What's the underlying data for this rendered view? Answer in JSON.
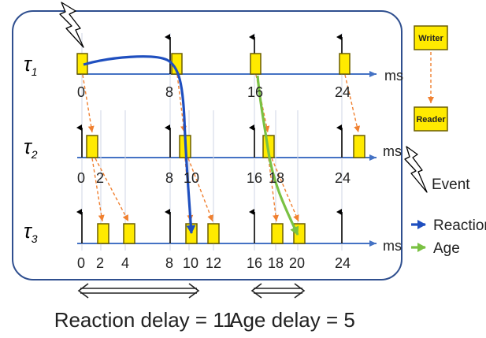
{
  "tasks": [
    {
      "label_base": "τ",
      "label_sub": "1"
    },
    {
      "label_base": "τ",
      "label_sub": "2"
    },
    {
      "label_base": "τ",
      "label_sub": "3"
    }
  ],
  "axis_unit": "ms",
  "ticks": {
    "row1": [
      "0",
      "8",
      "16",
      "24"
    ],
    "row2": [
      "0",
      "2",
      "8",
      "10",
      "16",
      "18",
      "24"
    ],
    "row3": [
      "0",
      "2",
      "4",
      "8",
      "10",
      "12",
      "16",
      "18",
      "20",
      "24"
    ]
  },
  "legend": {
    "writer": "Writer",
    "reader": "Reader",
    "event": "Event",
    "reaction": "Reaction",
    "age": "Age"
  },
  "captions": {
    "reaction_delay": "Reaction delay = 11",
    "age_delay": "Age delay = 5"
  },
  "colors": {
    "job_fill": "#ffea00",
    "job_stroke": "#6b5e00",
    "axis": "#4472c4",
    "frame": "#2f4f8f",
    "reaction": "#1f4fbf",
    "age": "#7ac143",
    "dependency": "#f08030"
  }
}
